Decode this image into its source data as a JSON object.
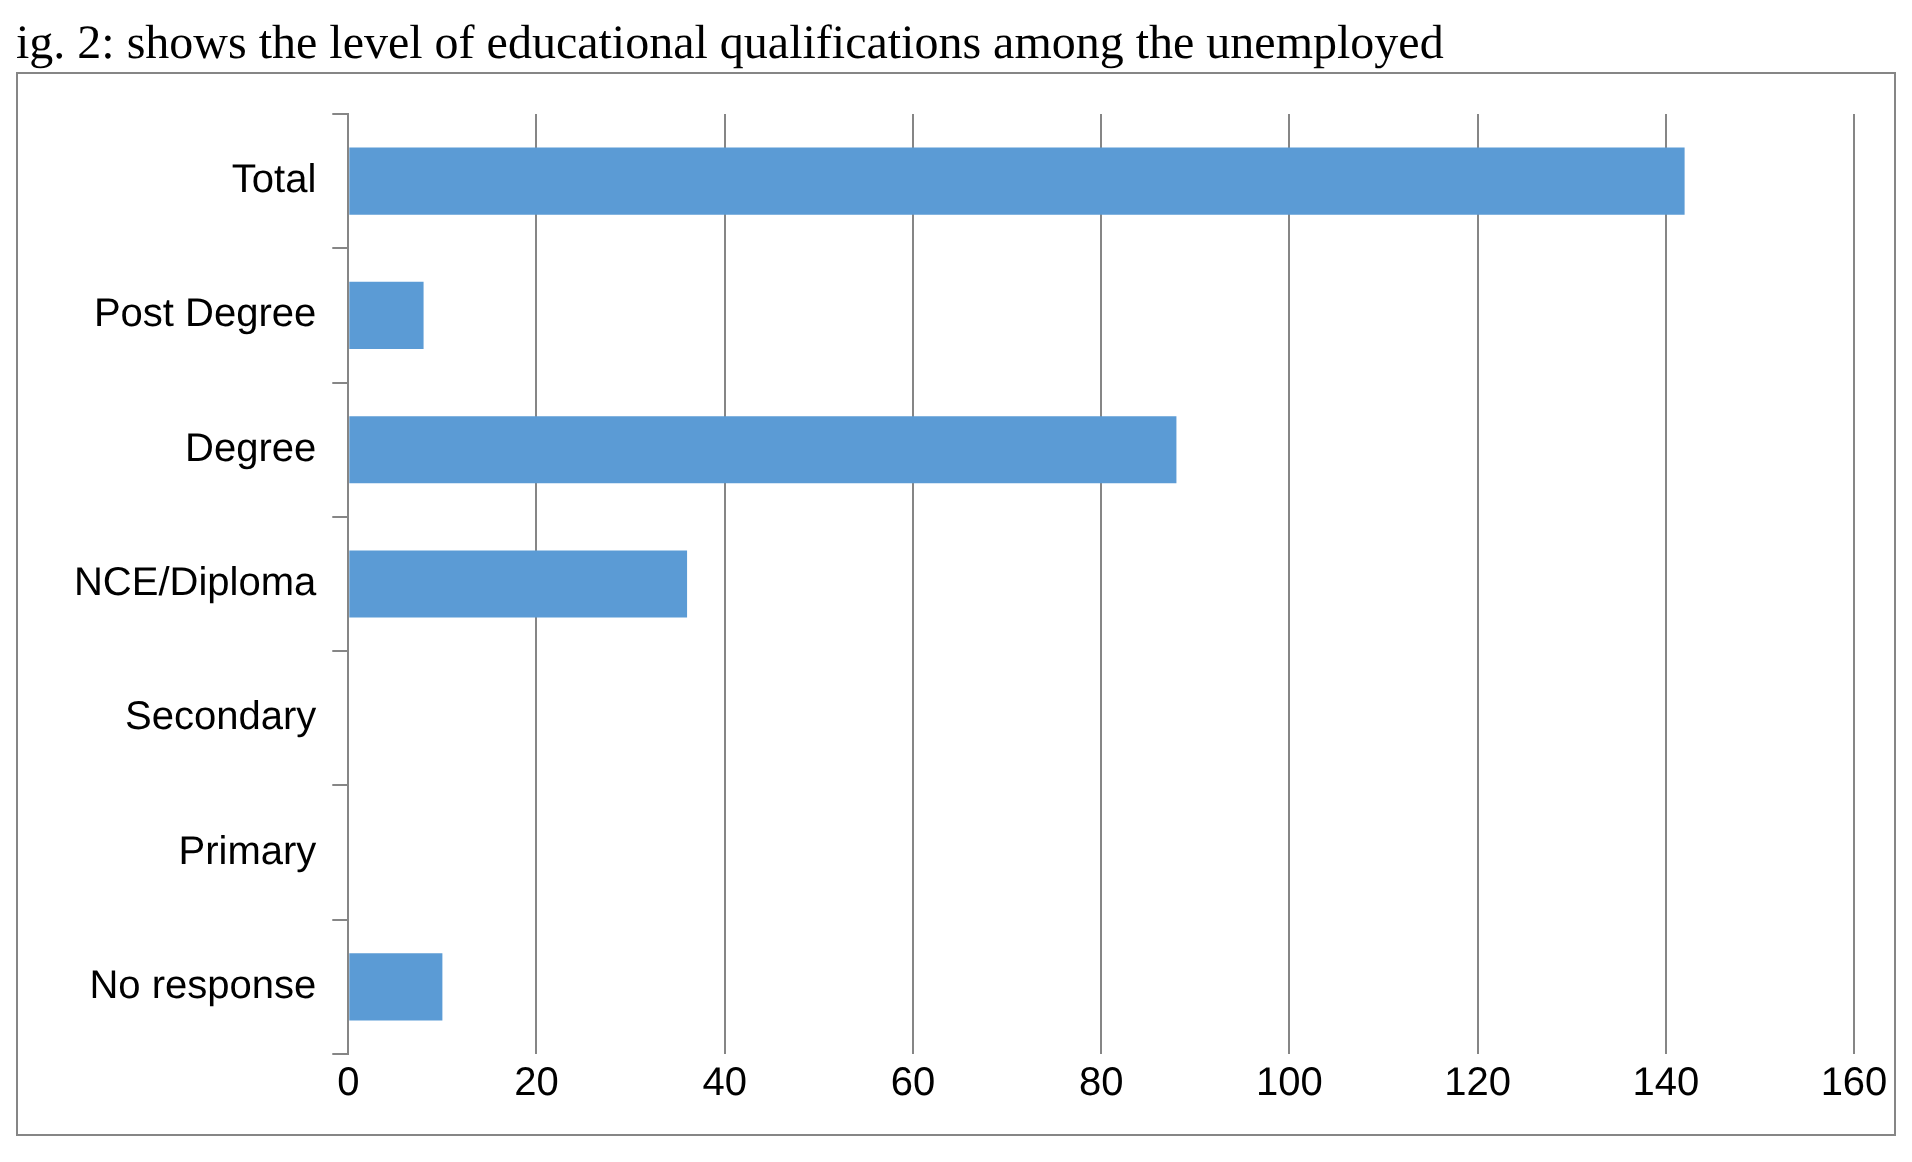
{
  "chart_data": {
    "type": "bar",
    "orientation": "horizontal",
    "title": "ig. 2: shows the level of educational qualifications among the unemployed",
    "categories": [
      "Total",
      "Post Degree",
      "Degree",
      "NCE/Diploma",
      "Secondary",
      "Primary",
      "No response"
    ],
    "values": [
      142,
      8,
      88,
      36,
      0,
      0,
      10
    ],
    "color": "#5b9bd5",
    "xlim": [
      0,
      160
    ],
    "xticks": [
      0,
      20,
      40,
      60,
      80,
      100,
      120,
      140,
      160
    ],
    "grid": "x",
    "legend": false
  }
}
